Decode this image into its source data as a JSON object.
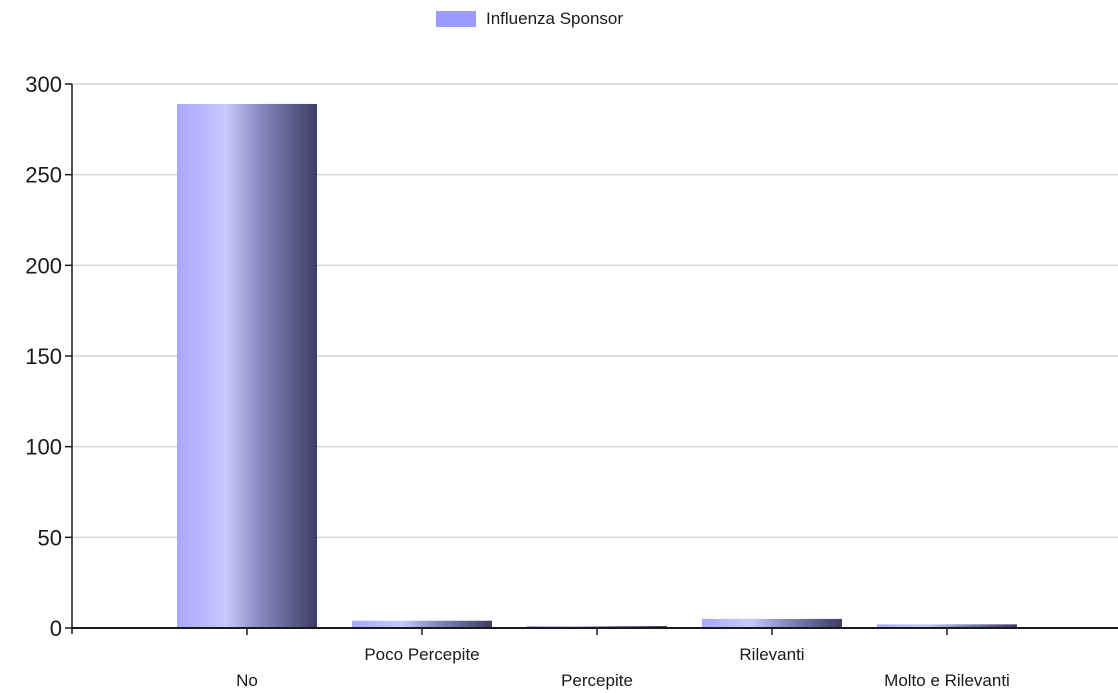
{
  "legend": {
    "label": "Influenza Sponsor",
    "color": "#9a9aff"
  },
  "chart_data": {
    "type": "bar",
    "categories": [
      "No",
      "Poco Percepite",
      "Percepite",
      "Rilevanti",
      "Molto e Rilevanti"
    ],
    "series": [
      {
        "name": "Influenza Sponsor",
        "values": [
          289,
          4,
          1,
          5,
          2
        ]
      }
    ],
    "ylim": [
      0,
      300
    ],
    "yticks": [
      0,
      50,
      100,
      150,
      200,
      250,
      300
    ],
    "grid": true,
    "legend_position": "top-center",
    "bar_gradient": [
      "#a8a8ff",
      "#c8c8ff",
      "#8888c0",
      "#3c3c64"
    ]
  }
}
